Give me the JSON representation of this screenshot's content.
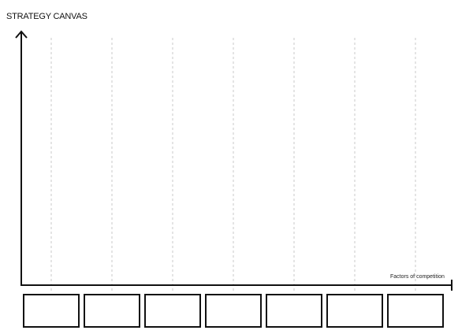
{
  "title": "STRATEGY CANVAS",
  "x_axis_label": "Factors of competition",
  "factor_count": 7,
  "factors": [
    "",
    "",
    "",
    "",
    "",
    "",
    ""
  ]
}
